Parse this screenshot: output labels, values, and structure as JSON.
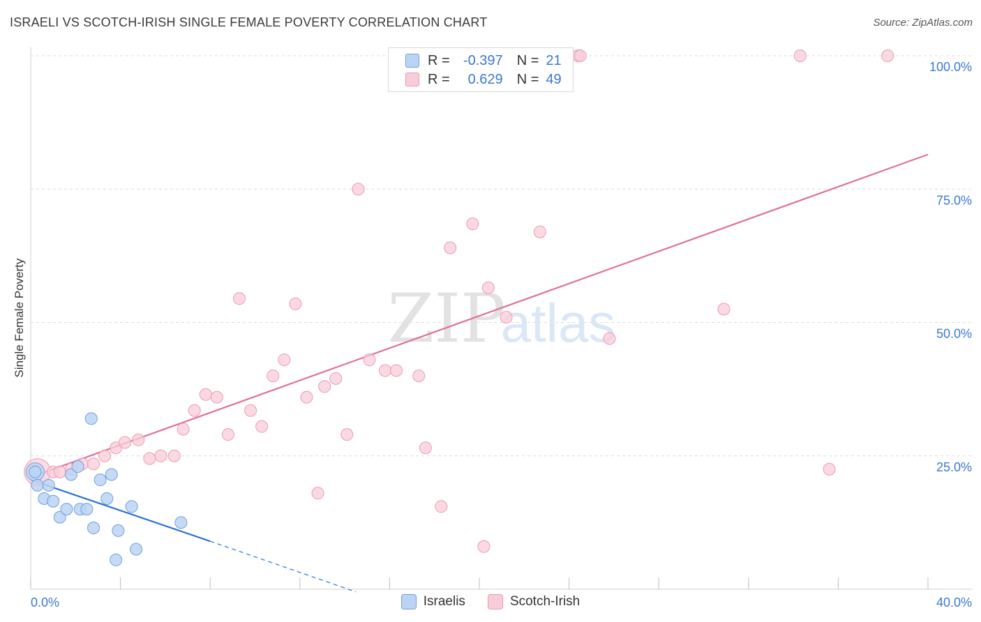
{
  "header": {
    "title": "ISRAELI VS SCOTCH-IRISH SINGLE FEMALE POVERTY CORRELATION CHART",
    "source": "Source: ZipAtlas.com"
  },
  "legend": {
    "rows": [
      {
        "r_label": "R =",
        "r_value": "-0.397",
        "n_label": "N =",
        "n_value": "21",
        "color": "#a9c8f0"
      },
      {
        "r_label": "R =",
        "r_value": "0.629",
        "n_label": "N =",
        "n_value": "49",
        "color": "#f6b8cb"
      }
    ]
  },
  "watermark": {
    "zip": "ZIP",
    "atlas": "atlas"
  },
  "colors": {
    "israeli_fill": "#bcd4f3",
    "israeli_stroke": "#6e9fdc",
    "israeli_line": "#2f72d4",
    "scotch_fill": "#f9ccd9",
    "scotch_stroke": "#ec9ab4",
    "scotch_line": "#e07097",
    "tick_label": "#3b78d0",
    "grid": "#dcdcdc"
  },
  "chart_data": {
    "type": "scatter",
    "title": "ISRAELI VS SCOTCH-IRISH SINGLE FEMALE POVERTY CORRELATION CHART",
    "xlabel": "",
    "ylabel": "Single Female Poverty",
    "xlim": [
      0,
      40
    ],
    "ylim": [
      0,
      100
    ],
    "x_tick_labels": [
      {
        "value": 0,
        "label": "0.0%"
      },
      {
        "value": 40,
        "label": "40.0%"
      }
    ],
    "y_tick_labels": [
      {
        "value": 25,
        "label": "25.0%"
      },
      {
        "value": 50,
        "label": "50.0%"
      },
      {
        "value": 75,
        "label": "75.0%"
      },
      {
        "value": 100,
        "label": "100.0%"
      }
    ],
    "series": [
      {
        "name": "Israelis",
        "r": -0.397,
        "n": 21,
        "points": [
          [
            0.2,
            22.0
          ],
          [
            0.3,
            19.5
          ],
          [
            0.6,
            17.0
          ],
          [
            0.8,
            19.5
          ],
          [
            1.0,
            16.5
          ],
          [
            1.3,
            13.5
          ],
          [
            1.6,
            15.0
          ],
          [
            1.8,
            21.5
          ],
          [
            2.1,
            23.0
          ],
          [
            2.2,
            15.0
          ],
          [
            2.5,
            15.0
          ],
          [
            2.7,
            32.0
          ],
          [
            2.8,
            11.5
          ],
          [
            3.1,
            20.5
          ],
          [
            3.4,
            17.0
          ],
          [
            3.6,
            21.5
          ],
          [
            3.8,
            5.5
          ],
          [
            3.9,
            11.0
          ],
          [
            4.5,
            15.5
          ],
          [
            4.7,
            7.5
          ],
          [
            6.7,
            12.5
          ]
        ],
        "trend": {
          "x0": 0,
          "y0": 20.5,
          "x1": 8.0,
          "y1": 9.0,
          "dash_to_x": 14.5,
          "dash_to_y": -0.5
        }
      },
      {
        "name": "Scotch-Irish",
        "r": 0.629,
        "n": 49,
        "points": [
          [
            0.2,
            22.0
          ],
          [
            1.0,
            22.0
          ],
          [
            1.3,
            22.0
          ],
          [
            1.8,
            22.5
          ],
          [
            2.3,
            23.5
          ],
          [
            2.8,
            23.5
          ],
          [
            3.3,
            25.0
          ],
          [
            3.8,
            26.5
          ],
          [
            4.2,
            27.5
          ],
          [
            4.8,
            28.0
          ],
          [
            5.3,
            24.5
          ],
          [
            5.8,
            25.0
          ],
          [
            6.4,
            25.0
          ],
          [
            6.8,
            30.0
          ],
          [
            7.3,
            33.5
          ],
          [
            7.8,
            36.5
          ],
          [
            8.3,
            36.0
          ],
          [
            8.8,
            29.0
          ],
          [
            9.3,
            54.5
          ],
          [
            9.8,
            33.5
          ],
          [
            10.3,
            30.5
          ],
          [
            10.8,
            40.0
          ],
          [
            11.3,
            43.0
          ],
          [
            11.8,
            53.5
          ],
          [
            12.3,
            36.0
          ],
          [
            12.8,
            18.0
          ],
          [
            13.1,
            38.0
          ],
          [
            13.6,
            39.5
          ],
          [
            14.1,
            29.0
          ],
          [
            14.6,
            75.0
          ],
          [
            15.1,
            43.0
          ],
          [
            15.8,
            41.0
          ],
          [
            16.3,
            41.0
          ],
          [
            17.3,
            40.0
          ],
          [
            17.6,
            26.5
          ],
          [
            18.3,
            15.5
          ],
          [
            18.7,
            64.0
          ],
          [
            19.7,
            68.5
          ],
          [
            20.2,
            8.0
          ],
          [
            20.4,
            56.5
          ],
          [
            21.2,
            51.0
          ],
          [
            22.7,
            67.0
          ],
          [
            24.4,
            100.0
          ],
          [
            25.8,
            47.0
          ],
          [
            30.9,
            52.5
          ],
          [
            34.3,
            100.0
          ],
          [
            35.6,
            22.5
          ],
          [
            38.2,
            100.0
          ],
          [
            24.5,
            100.0
          ]
        ],
        "trend": {
          "x0": 0,
          "y0": 21.0,
          "x1": 40.0,
          "y1": 81.5
        }
      }
    ]
  },
  "bottom_legend": {
    "items": [
      {
        "label": "Israelis"
      },
      {
        "label": "Scotch-Irish"
      }
    ]
  }
}
